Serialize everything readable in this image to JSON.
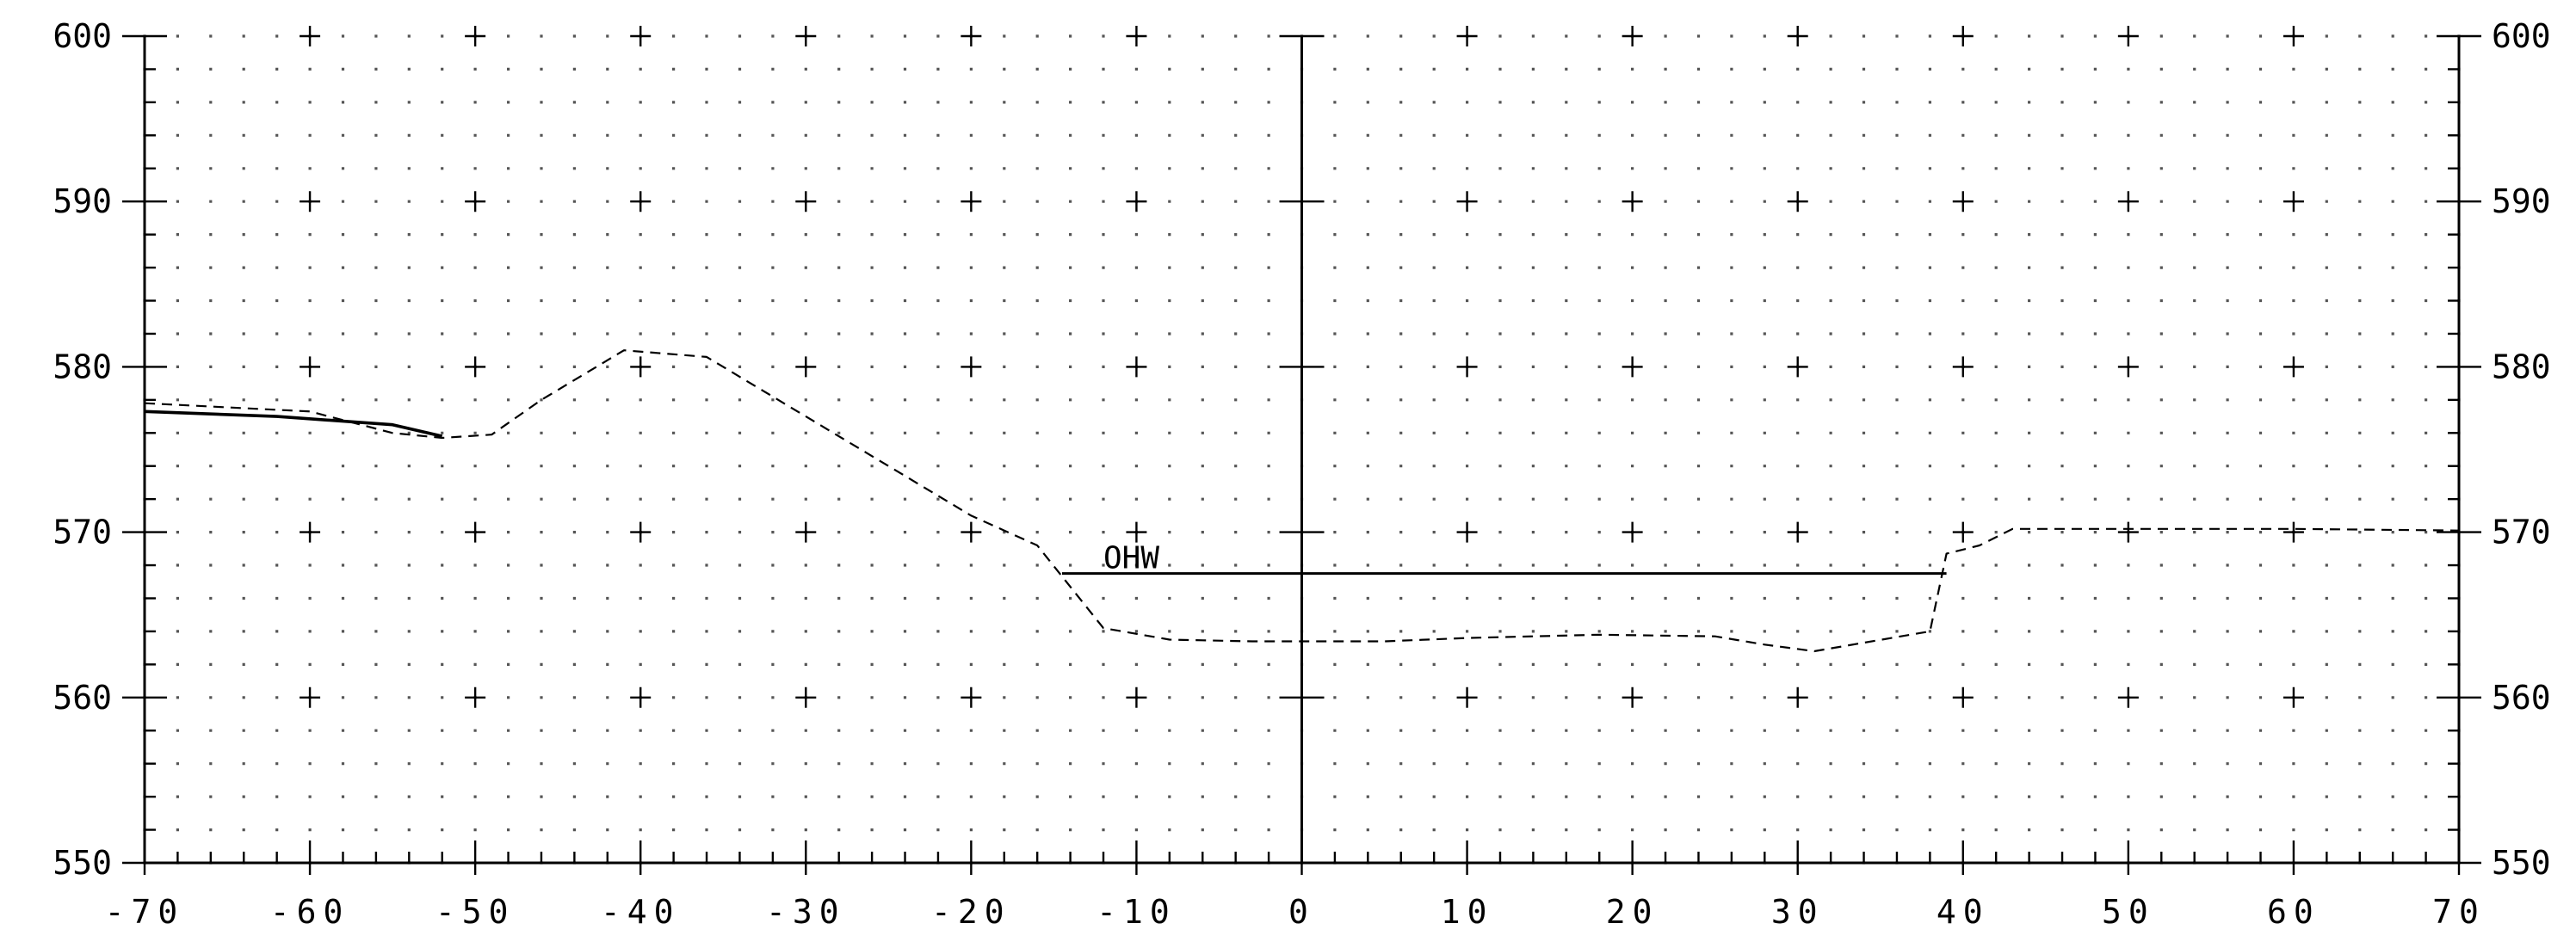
{
  "chart_data": {
    "type": "line",
    "title": "",
    "xlabel": "",
    "ylabel": "",
    "xlim": [
      -70,
      70
    ],
    "ylim": [
      550,
      600
    ],
    "x_ticks": [
      -70,
      -60,
      -50,
      -40,
      -30,
      -20,
      -10,
      0,
      10,
      20,
      30,
      40,
      50,
      60,
      70
    ],
    "x_tick_labels": [
      "-70",
      "-60",
      "-50",
      "-40",
      "-30",
      "-20",
      "-10",
      "0",
      "10",
      "20",
      "30",
      "40",
      "50",
      "60",
      "70"
    ],
    "y_ticks": [
      550,
      560,
      570,
      580,
      590,
      600
    ],
    "y_tick_labels": [
      "550",
      "560",
      "570",
      "580",
      "590",
      "600"
    ],
    "grid": true,
    "series": [
      {
        "style": "dashed",
        "color": "#000000",
        "x": [
          -70,
          -60,
          -55,
          -52,
          -49,
          -46,
          -41,
          -36,
          -30,
          -25,
          -20,
          -16,
          -12,
          -8,
          -3,
          5,
          10,
          18,
          25,
          28,
          31,
          38,
          39,
          41,
          43,
          50,
          60,
          70
        ],
        "y": [
          577.8,
          577.3,
          576.0,
          575.7,
          575.9,
          578.0,
          581.0,
          580.6,
          577.0,
          574.0,
          571.0,
          569.2,
          564.2,
          563.5,
          563.4,
          563.4,
          563.6,
          563.8,
          563.7,
          563.2,
          562.8,
          564.0,
          568.7,
          569.2,
          570.2,
          570.2,
          570.2,
          570.1
        ]
      },
      {
        "style": "solid",
        "color": "#000000",
        "x": [
          -70,
          -62,
          -55,
          -52
        ],
        "y": [
          577.3,
          577.0,
          576.5,
          575.8
        ]
      }
    ],
    "annotations": [
      {
        "text": "OHW",
        "x": -12,
        "y": 567.5,
        "line_from_x": -14.5,
        "line_to_x": 39
      }
    ]
  }
}
